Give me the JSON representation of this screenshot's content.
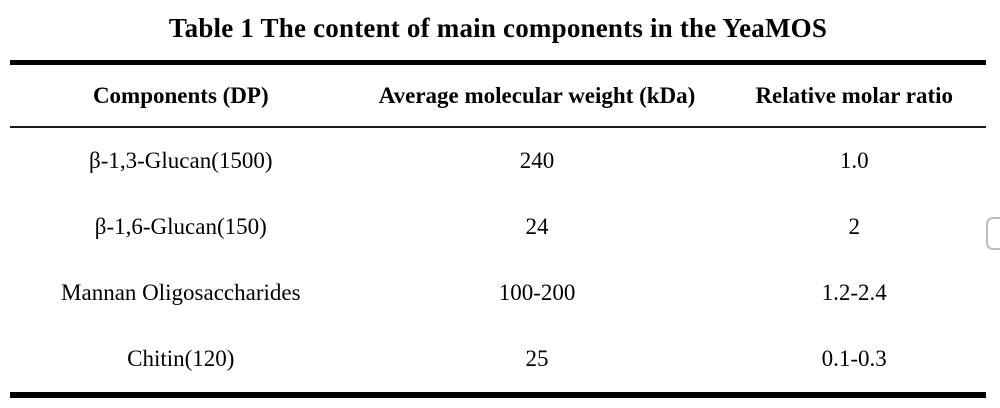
{
  "table": {
    "title": "Table 1 The content of main components in the YeaMOS",
    "columns": [
      "Components (DP)",
      "Average molecular weight (kDa)",
      "Relative molar ratio"
    ],
    "rows": [
      {
        "component": "β-1,3-Glucan(1500)",
        "mw": "240",
        "ratio": "1.0"
      },
      {
        "component": "β-1,6-Glucan(150)",
        "mw": "24",
        "ratio": "2"
      },
      {
        "component": "Mannan Oligosaccharides",
        "mw": "100-200",
        "ratio": "1.2-2.4"
      },
      {
        "component": "Chitin(120)",
        "mw": "25",
        "ratio": "0.1-0.3"
      }
    ]
  },
  "colors": {
    "text": "#000000",
    "thick_rule": "#000000",
    "thin_rule": "#1c1c1c",
    "background": "#ffffff",
    "edge_widget_border": "#bdbdbd"
  }
}
